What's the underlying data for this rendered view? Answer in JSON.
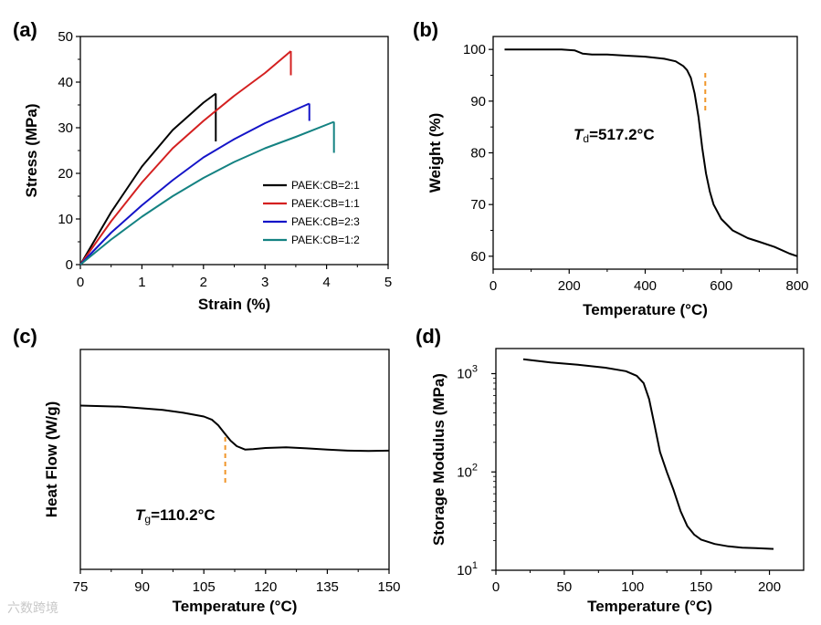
{
  "watermark": "六数跨境",
  "chart_data": [
    {
      "panel": "(a)",
      "type": "line",
      "xlabel": "Strain (%)",
      "ylabel": "Stress (MPa)",
      "xlim": [
        0,
        5
      ],
      "ylim": [
        0,
        50
      ],
      "xticks": [
        0,
        1,
        2,
        3,
        4,
        5
      ],
      "yticks": [
        0,
        10,
        20,
        30,
        40,
        50
      ],
      "legend": "center-right",
      "series": [
        {
          "name": "PAEK:CB=2:1",
          "color": "#000000",
          "x": [
            0,
            0.5,
            1.0,
            1.5,
            2.0,
            2.2
          ],
          "y": [
            0,
            11.5,
            21.5,
            29.5,
            35.5,
            37.5
          ],
          "break": 27
        },
        {
          "name": "PAEK:CB=1:1",
          "color": "#d42020",
          "x": [
            0,
            0.5,
            1.0,
            1.5,
            2.0,
            2.5,
            3.0,
            3.42
          ],
          "y": [
            0,
            9.5,
            18,
            25.5,
            31.5,
            37,
            42,
            46.8
          ],
          "break": 41.5
        },
        {
          "name": "PAEK:CB=2:3",
          "color": "#1414c8",
          "x": [
            0,
            0.5,
            1.0,
            1.5,
            2.0,
            2.5,
            3.0,
            3.5,
            3.72
          ],
          "y": [
            0,
            7,
            13,
            18.5,
            23.5,
            27.5,
            31,
            34,
            35.3
          ],
          "break": 31.5
        },
        {
          "name": "PAEK:CB=1:2",
          "color": "#148282",
          "x": [
            0,
            0.5,
            1.0,
            1.5,
            2.0,
            2.5,
            3.0,
            3.5,
            4.12
          ],
          "y": [
            0,
            5.5,
            10.5,
            15,
            19,
            22.5,
            25.5,
            28,
            31.3
          ],
          "break": 24.5
        }
      ]
    },
    {
      "panel": "(b)",
      "type": "line",
      "xlabel": "Temperature (°C)",
      "ylabel": "Weight (%)",
      "xlim": [
        0,
        800
      ],
      "ylim": [
        57.5,
        102.5
      ],
      "xticks": [
        0,
        200,
        400,
        600,
        800
      ],
      "yticks": [
        60,
        70,
        80,
        90,
        100
      ],
      "annotation": {
        "italic": "T",
        "subscript": "d",
        "text": "=517.2°C",
        "x": 517.2
      },
      "series": [
        {
          "color": "#000000",
          "x": [
            30,
            100,
            180,
            215,
            235,
            260,
            300,
            350,
            400,
            450,
            480,
            500,
            510,
            520,
            530,
            540,
            550,
            560,
            570,
            580,
            600,
            630,
            670,
            700,
            740,
            780,
            800
          ],
          "y": [
            100,
            100,
            100,
            99.8,
            99.2,
            99,
            99,
            98.8,
            98.6,
            98.2,
            97.7,
            96.8,
            96,
            94.5,
            91.5,
            87,
            81,
            76,
            72.5,
            70,
            67.2,
            65,
            63.5,
            62.8,
            61.8,
            60.5,
            60
          ]
        }
      ]
    },
    {
      "panel": "(c)",
      "type": "line",
      "xlabel": "Temperature (°C)",
      "ylabel": "Heat Flow (W/g)",
      "xlim": [
        75,
        150
      ],
      "ylim": [
        0,
        1
      ],
      "xticks": [
        75,
        90,
        105,
        120,
        135,
        150
      ],
      "annotation": {
        "italic": "T",
        "subscript": "g",
        "text": "=110.2°C",
        "x": 110.2
      },
      "series": [
        {
          "color": "#000000",
          "x": [
            75,
            85,
            95,
            100,
            105,
            107,
            108.5,
            110,
            111.5,
            113,
            115,
            117,
            120,
            125,
            130,
            135,
            140,
            145,
            150
          ],
          "y": [
            0.745,
            0.74,
            0.725,
            0.712,
            0.695,
            0.68,
            0.655,
            0.62,
            0.585,
            0.56,
            0.545,
            0.547,
            0.552,
            0.555,
            0.55,
            0.545,
            0.54,
            0.538,
            0.54
          ]
        }
      ]
    },
    {
      "panel": "(d)",
      "type": "line",
      "xlabel": "Temperature (°C)",
      "ylabel": "Storage Modulus (MPa)",
      "xlim": [
        0,
        225
      ],
      "ylim": [
        10,
        1800
      ],
      "yscale": "log",
      "xticks": [
        0,
        50,
        100,
        150,
        200
      ],
      "yticks": [
        {
          "base": "10",
          "exp": "1",
          "value": 10
        },
        {
          "base": "10",
          "exp": "2",
          "value": 100
        },
        {
          "base": "10",
          "exp": "3",
          "value": 1000
        }
      ],
      "series": [
        {
          "color": "#000000",
          "x": [
            20,
            40,
            60,
            80,
            95,
            103,
            108,
            112,
            116,
            120,
            125,
            130,
            135,
            140,
            145,
            150,
            160,
            170,
            180,
            190,
            203
          ],
          "y": [
            1400,
            1300,
            1230,
            1150,
            1060,
            950,
            800,
            550,
            300,
            160,
            100,
            65,
            40,
            28,
            23,
            20.5,
            18.5,
            17.5,
            17,
            16.8,
            16.5
          ]
        }
      ]
    }
  ]
}
